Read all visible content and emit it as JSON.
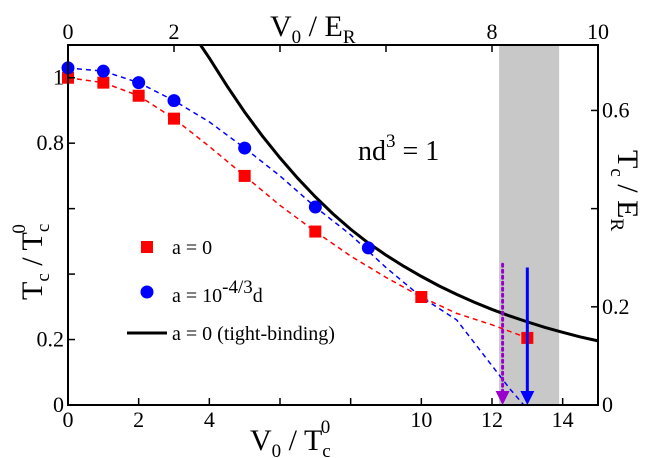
{
  "chart_data": {
    "type": "scatter",
    "axes": {
      "bottom": {
        "label_main": "V",
        "label_sub": "0",
        "label_rest": " / T",
        "label_sub2": "c",
        "label_sup2": "0",
        "range": [
          0,
          15
        ],
        "ticks": [
          0,
          2,
          4,
          6,
          8,
          10,
          12,
          14
        ],
        "tick_labels": [
          "0",
          "2",
          "4",
          "",
          "",
          "10",
          "12",
          "14"
        ]
      },
      "top": {
        "label_main": "V",
        "label_sub": "0",
        "label_rest": " / E",
        "label_sub2": "R",
        "range": [
          0,
          10
        ],
        "ticks": [
          0,
          2,
          4,
          6,
          8,
          10
        ],
        "tick_labels": [
          "0",
          "2",
          "",
          "",
          "8",
          "10"
        ]
      },
      "left": {
        "label_main": "T",
        "label_sub": "c",
        "label_rest": " / T",
        "label_sub2": "c",
        "label_sup2": "0",
        "range": [
          0,
          1.1
        ],
        "ticks": [
          0,
          0.2,
          0.4,
          0.6,
          0.8,
          1.0
        ],
        "tick_labels": [
          "0",
          "0.2",
          "",
          "",
          "0.8",
          "1"
        ]
      },
      "right": {
        "label_main": "T",
        "label_sub": "c",
        "label_rest": " / E",
        "label_sub2": "R",
        "range": [
          0,
          0.7333
        ],
        "ticks": [
          0,
          0.2,
          0.4,
          0.6
        ],
        "tick_labels": [
          "0",
          "0.2",
          "",
          "0.6"
        ]
      }
    },
    "annotation": {
      "main": "nd",
      "sup": "3",
      "rest": " = 1"
    },
    "shaded_region": {
      "x": [
        12.2,
        13.9
      ],
      "color": "#c8c8c8"
    },
    "series": [
      {
        "name": "a = 0",
        "marker": "square",
        "color": "#ff0000",
        "x": [
          0,
          1,
          2,
          3,
          5,
          7,
          10,
          13
        ],
        "y": [
          1.0,
          0.985,
          0.945,
          0.875,
          0.7,
          0.53,
          0.33,
          0.205
        ]
      },
      {
        "name_main": "a = 10",
        "name_sup": "-4/3",
        "name_rest": "d",
        "marker": "circle",
        "color": "#0000ff",
        "x": [
          0,
          1,
          2,
          3,
          5,
          7,
          8.5
        ],
        "y": [
          1.03,
          1.02,
          0.985,
          0.93,
          0.785,
          0.605,
          0.48
        ]
      }
    ],
    "fit_lines": [
      {
        "color": "#ff0000",
        "style": "dashed",
        "x": [
          0,
          1,
          2,
          3,
          4,
          5,
          6,
          7,
          8,
          9,
          10,
          11,
          12,
          13
        ],
        "y": [
          1.0,
          0.985,
          0.945,
          0.875,
          0.79,
          0.7,
          0.61,
          0.53,
          0.455,
          0.39,
          0.33,
          0.28,
          0.245,
          0.205
        ]
      },
      {
        "color": "#0000ff",
        "style": "dashed",
        "x": [
          0,
          1,
          2,
          3,
          4,
          5,
          6,
          7,
          8,
          9,
          10,
          11,
          12,
          12.5,
          12.9
        ],
        "y": [
          1.03,
          1.02,
          0.985,
          0.93,
          0.865,
          0.785,
          0.7,
          0.605,
          0.52,
          0.42,
          0.33,
          0.26,
          0.12,
          0.05,
          0.0
        ]
      }
    ],
    "tight_binding": {
      "name": "a = 0 (tight-binding)",
      "color": "#000000",
      "x": [
        3.75,
        4,
        4.5,
        5,
        5.5,
        6,
        6.5,
        7,
        7.5,
        8,
        8.5,
        9,
        9.5,
        10,
        10.5,
        11,
        11.5,
        12,
        12.5,
        13,
        13.5,
        14,
        14.5,
        15
      ],
      "y": [
        1.1,
        1.06,
        0.975,
        0.895,
        0.822,
        0.755,
        0.693,
        0.636,
        0.584,
        0.537,
        0.495,
        0.458,
        0.424,
        0.393,
        0.364,
        0.338,
        0.314,
        0.292,
        0.272,
        0.254,
        0.237,
        0.222,
        0.208,
        0.196
      ]
    },
    "arrows": [
      {
        "color": "#0000ff",
        "style": "solid",
        "x": 13.0,
        "y_from": 0.42,
        "y_to": 0.0
      },
      {
        "color": "#9900cc",
        "style": "dotted",
        "x": 12.3,
        "y_from": 0.43,
        "y_to": 0.0
      }
    ],
    "grid": false,
    "legend_position": "bottom-left"
  }
}
